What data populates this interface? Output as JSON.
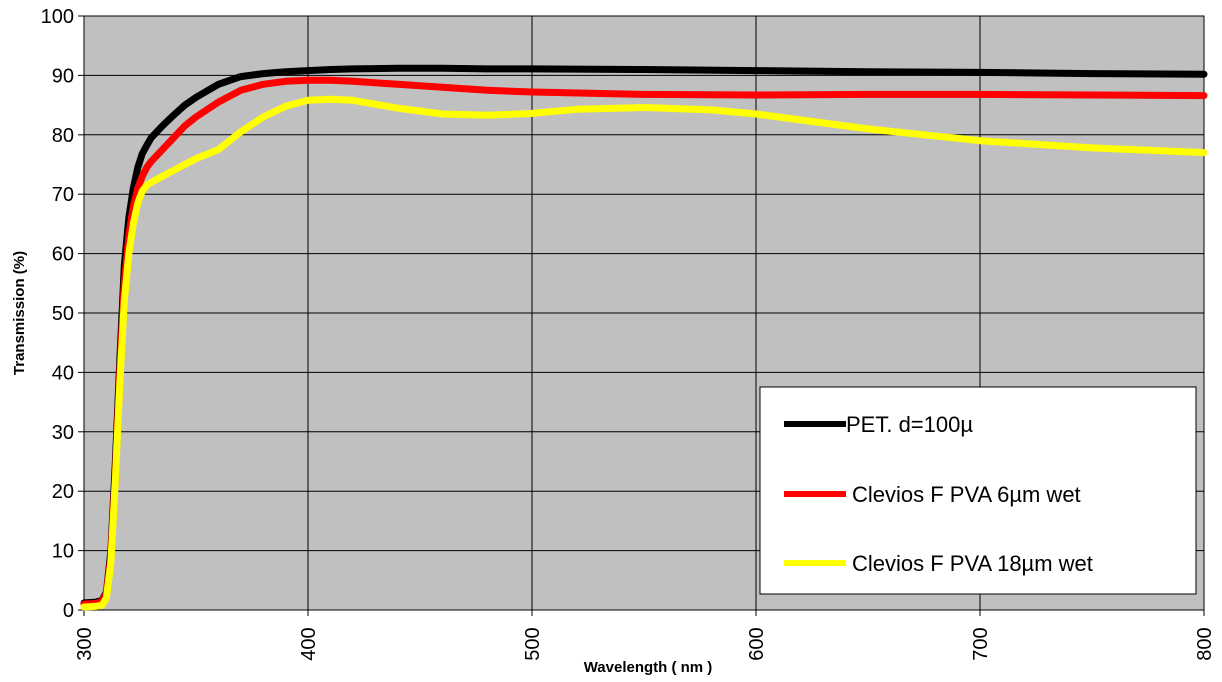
{
  "chart_data": {
    "type": "line",
    "title": "",
    "xlabel": "Wavelength ( nm )",
    "ylabel": "Transmission (%)",
    "xlim": [
      300,
      800
    ],
    "ylim": [
      0,
      100
    ],
    "x_ticks": [
      300,
      400,
      500,
      600,
      700,
      800
    ],
    "y_ticks": [
      0,
      10,
      20,
      30,
      40,
      50,
      60,
      70,
      80,
      90,
      100
    ],
    "grid": true,
    "plot_background": "#c0c0c0",
    "legend_position": "bottom-right",
    "series": [
      {
        "name": "PET. d=100µ",
        "color": "#000000",
        "x": [
          300,
          305,
          308,
          310,
          312,
          314,
          316,
          318,
          320,
          322,
          324,
          326,
          328,
          330,
          335,
          340,
          345,
          350,
          360,
          370,
          380,
          390,
          400,
          410,
          420,
          440,
          460,
          480,
          500,
          550,
          600,
          650,
          700,
          750,
          800
        ],
        "y": [
          1.2,
          1.3,
          1.6,
          3,
          10,
          25,
          42,
          58,
          66,
          71,
          74.5,
          76.8,
          78.2,
          79.5,
          81.5,
          83.3,
          85,
          86.3,
          88.5,
          89.8,
          90.3,
          90.6,
          90.8,
          91,
          91.1,
          91.2,
          91.2,
          91.1,
          91.1,
          91,
          90.8,
          90.6,
          90.5,
          90.3,
          90.2
        ]
      },
      {
        "name": "Clevios F PVA 6µm wet",
        "color": "#ff0000",
        "x": [
          300,
          305,
          308,
          310,
          312,
          314,
          316,
          318,
          320,
          322,
          324,
          326,
          328,
          330,
          335,
          340,
          345,
          350,
          360,
          370,
          380,
          390,
          400,
          410,
          420,
          440,
          460,
          480,
          500,
          550,
          600,
          650,
          700,
          750,
          800
        ],
        "y": [
          1,
          1.1,
          1.4,
          2.8,
          9,
          23,
          40,
          55,
          63,
          68,
          71,
          73,
          74.5,
          75.5,
          77.5,
          79.5,
          81.5,
          83,
          85.5,
          87.5,
          88.5,
          89,
          89.2,
          89.2,
          89,
          88.5,
          88,
          87.5,
          87.2,
          86.8,
          86.7,
          86.8,
          86.8,
          86.7,
          86.6
        ]
      },
      {
        "name": "Clevios F PVA 18µm wet",
        "color": "#ffff00",
        "x": [
          300,
          305,
          308,
          310,
          312,
          314,
          316,
          318,
          320,
          322,
          324,
          326,
          328,
          330,
          335,
          340,
          345,
          350,
          360,
          370,
          380,
          390,
          400,
          410,
          420,
          440,
          460,
          480,
          500,
          520,
          550,
          580,
          600,
          650,
          700,
          750,
          800
        ],
        "y": [
          0.5,
          0.6,
          0.8,
          2,
          8,
          22,
          38,
          52,
          60,
          65,
          68.5,
          70.5,
          71.5,
          72,
          73,
          74,
          75,
          76,
          77.5,
          80.5,
          83,
          84.8,
          85.8,
          86,
          85.8,
          84.5,
          83.5,
          83.3,
          83.6,
          84.3,
          84.6,
          84.2,
          83.5,
          81,
          79,
          77.8,
          77
        ]
      }
    ]
  }
}
